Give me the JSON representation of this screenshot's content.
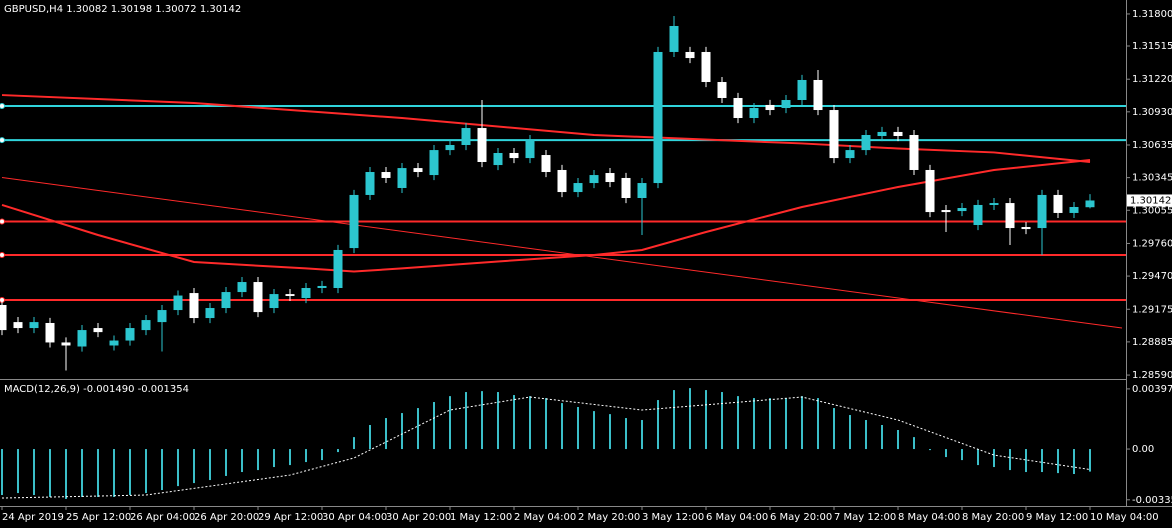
{
  "chart_data": [
    {
      "type": "candlestick",
      "title": "GBPUSD,H4  1.30082 1.30198 1.30072 1.30142",
      "categories": [
        "24 Apr 2019",
        null,
        null,
        null,
        "25 Apr 12:00",
        null,
        null,
        null,
        "26 Apr 04:00",
        null,
        null,
        null,
        "26 Apr 20:00",
        null,
        null,
        null,
        "29 Apr 12:00",
        null,
        null,
        null,
        "30 Apr 04:00",
        null,
        null,
        null,
        "30 Apr 20:00",
        null,
        null,
        null,
        "1 May 12:00",
        null,
        null,
        null,
        "2 May 04:00",
        null,
        null,
        null,
        "2 May 20:00",
        null,
        null,
        null,
        "3 May 12:00",
        null,
        null,
        null,
        "6 May 04:00",
        null,
        null,
        null,
        "6 May 20:00",
        null,
        null,
        null,
        "7 May 12:00",
        null,
        null,
        null,
        "8 May 04:00",
        null,
        null,
        null,
        "8 May 20:00",
        null,
        null,
        null,
        "9 May 12:00",
        null,
        null,
        null,
        "10 May 04:00"
      ],
      "open": [
        1.29213,
        1.29061,
        1.29008,
        1.29053,
        1.2888,
        1.28844,
        1.29008,
        1.28853,
        1.28897,
        1.2899,
        1.29061,
        1.29168,
        1.29319,
        1.29097,
        1.29186,
        1.29328,
        1.29417,
        1.29186,
        1.2931,
        1.29275,
        1.29364,
        1.29364,
        1.29719,
        1.30191,
        1.30395,
        1.30253,
        1.3043,
        1.30368,
        1.3059,
        1.30635,
        1.30786,
        1.30457,
        1.30564,
        1.30519,
        1.30546,
        1.30413,
        1.30217,
        1.30297,
        1.30386,
        1.30342,
        1.30164,
        1.30297,
        1.31462,
        1.31462,
        1.31462,
        1.31195,
        1.31053,
        1.30875,
        1.30991,
        1.30964,
        1.31035,
        1.31213,
        1.30946,
        1.30519,
        1.3059,
        1.30715,
        1.30751,
        1.30724,
        1.30413,
        1.30057,
        1.30048,
        1.29924,
        1.30102,
        1.30119,
        1.29906,
        1.29897,
        1.30191,
        1.30031,
        1.30082
      ],
      "high": [
        1.29258,
        1.29106,
        1.29106,
        1.29098,
        1.28925,
        1.29035,
        1.29053,
        1.28942,
        1.29053,
        1.29124,
        1.29213,
        1.29342,
        1.29364,
        1.29231,
        1.29373,
        1.29462,
        1.29462,
        1.29355,
        1.29355,
        1.29409,
        1.29427,
        1.29747,
        1.30236,
        1.3044,
        1.3044,
        1.30475,
        1.30475,
        1.30635,
        1.3068,
        1.30831,
        1.31035,
        1.30609,
        1.30609,
        1.30724,
        1.30591,
        1.30458,
        1.30342,
        1.30413,
        1.30431,
        1.30387,
        1.30342,
        1.31507,
        1.31782,
        1.31507,
        1.31507,
        1.3124,
        1.31098,
        1.31009,
        1.31036,
        1.3108,
        1.31258,
        1.31302,
        1.30991,
        1.30635,
        1.30769,
        1.30796,
        1.30796,
        1.30769,
        1.30458,
        1.30102,
        1.3012,
        1.30147,
        1.30164,
        1.30164,
        1.29951,
        1.30236,
        1.30236,
        1.30129,
        1.30198
      ],
      "low": [
        1.28945,
        1.28963,
        1.28963,
        1.28835,
        1.28631,
        1.28799,
        1.28927,
        1.28808,
        1.28852,
        1.28945,
        1.288,
        1.29123,
        1.29052,
        1.29052,
        1.29141,
        1.29283,
        1.29105,
        1.29141,
        1.29248,
        1.2923,
        1.29319,
        1.29319,
        1.29674,
        1.30146,
        1.30297,
        1.30208,
        1.3035,
        1.30323,
        1.30545,
        1.3059,
        1.30439,
        1.30412,
        1.30474,
        1.30474,
        1.3035,
        1.30172,
        1.30172,
        1.30252,
        1.30261,
        1.30119,
        1.29835,
        1.30252,
        1.31417,
        1.31363,
        1.3115,
        1.31008,
        1.3083,
        1.3083,
        1.30901,
        1.30919,
        1.3099,
        1.30901,
        1.30474,
        1.30474,
        1.30545,
        1.3067,
        1.3067,
        1.30368,
        1.29994,
        1.29862,
        1.30003,
        1.29879,
        1.30057,
        1.29746,
        1.29843,
        1.29657,
        1.29986,
        1.29986,
        1.30072
      ],
      "close": [
        1.2899,
        1.29008,
        1.29061,
        1.2888,
        1.28853,
        1.2899,
        1.28972,
        1.28897,
        1.29008,
        1.29079,
        1.29168,
        1.29297,
        1.29097,
        1.29186,
        1.29328,
        1.29417,
        1.2915,
        1.2931,
        1.29293,
        1.29364,
        1.29382,
        1.29702,
        1.30191,
        1.30395,
        1.30342,
        1.3043,
        1.30395,
        1.3059,
        1.30635,
        1.30786,
        1.30484,
        1.30564,
        1.30519,
        1.30679,
        1.30395,
        1.30217,
        1.30297,
        1.30368,
        1.30306,
        1.30164,
        1.30297,
        1.31462,
        1.31693,
        1.31408,
        1.31195,
        1.31053,
        1.30875,
        1.30964,
        1.30946,
        1.31035,
        1.31213,
        1.30946,
        1.30519,
        1.3059,
        1.30724,
        1.30751,
        1.30715,
        1.30413,
        1.30039,
        1.30039,
        1.30075,
        1.30102,
        1.30119,
        1.29897,
        1.29888,
        1.30191,
        1.30031,
        1.30084,
        1.30142
      ],
      "up_color": "#2cc6cf",
      "down_color": "#ffffff",
      "last_price_label": "1.30142",
      "ylim": [
        1.28564,
        1.31924
      ],
      "yticks": [
        {
          "value": 1.318,
          "label": "1.31800"
        },
        1.31515,
        {
          "value": 1.3122,
          "label": "1.31220"
        },
        {
          "value": 1.3093,
          "label": "1.30930"
        },
        1.30635,
        1.30345,
        1.30055,
        {
          "value": 1.2976,
          "label": "1.29760"
        },
        {
          "value": 1.2947,
          "label": "1.29470"
        },
        1.29175,
        1.28885,
        {
          "value": 1.2859,
          "label": "1.28590"
        }
      ],
      "hlines": [
        {
          "value": 1.30982,
          "color": "#30d5dc"
        },
        {
          "value": 1.30679,
          "color": "#30d5dc"
        },
        {
          "value": 1.29955,
          "color": "#ff2a2a"
        },
        {
          "value": 1.29657,
          "color": "#ff2a2a"
        },
        {
          "value": 1.29257,
          "color": "#ff2a2a"
        }
      ],
      "overlays": [
        {
          "color": "#ff2a2a",
          "width": 2,
          "x": [
            0,
            12,
            25,
            37,
            50,
            56,
            62,
            68
          ],
          "values": [
            1.31079,
            1.31008,
            1.30875,
            1.30724,
            1.30649,
            1.30604,
            1.30569,
            1.30484
          ]
        },
        {
          "color": "#ff2a2a",
          "width": 2,
          "x": [
            0,
            6,
            12,
            19,
            22,
            25,
            31,
            37,
            40,
            44,
            50,
            56,
            62,
            68
          ],
          "values": [
            1.30102,
            1.29835,
            1.29595,
            1.29538,
            1.29511,
            1.29538,
            1.296,
            1.29657,
            1.29702,
            1.29862,
            1.30084,
            1.30262,
            1.30413,
            1.30502
          ]
        },
        {
          "color": "#ff2a2a",
          "width": 1,
          "x": [
            0,
            70
          ],
          "values": [
            1.30346,
            1.29008
          ]
        }
      ]
    },
    {
      "type": "macd",
      "title": "MACD(12,26,9) -0.001490 -0.001354",
      "color": "#3bbfc9",
      "signal_color": "#ffffff",
      "values": [
        -0.00304,
        -0.00291,
        -0.00304,
        -0.00317,
        -0.0033,
        -0.00317,
        -0.00317,
        -0.00317,
        -0.00304,
        -0.00291,
        -0.00271,
        -0.00245,
        -0.00225,
        -0.00205,
        -0.00178,
        -0.00152,
        -0.00139,
        -0.00119,
        -0.00106,
        -0.00086,
        -0.00073,
        -0.0002,
        0.00079,
        0.00159,
        0.00205,
        0.00238,
        0.00271,
        0.00311,
        0.0035,
        0.00377,
        0.00383,
        0.00377,
        0.00357,
        0.0035,
        0.00337,
        0.00304,
        0.00278,
        0.00251,
        0.00231,
        0.00205,
        0.00192,
        0.00324,
        0.0039,
        0.00403,
        0.0039,
        0.00377,
        0.0035,
        0.00337,
        0.00337,
        0.00337,
        0.0035,
        0.00337,
        0.00271,
        0.00225,
        0.00192,
        0.00159,
        0.00126,
        0.00079,
        -7e-05,
        -0.00053,
        -0.00073,
        -0.00106,
        -0.00119,
        -0.00139,
        -0.00152,
        -0.00152,
        -0.00159,
        -0.00165,
        -0.00149
      ],
      "signal": {
        "x": [
          0,
          9,
          18,
          22,
          28,
          33,
          40,
          50,
          56,
          62,
          68
        ],
        "values": [
          -0.00324,
          -0.00304,
          -0.00172,
          -0.00059,
          0.00258,
          0.00344,
          0.00258,
          0.00344,
          0.00192,
          -0.0004,
          -0.001354
        ]
      },
      "ylim": [
        -0.0037,
        0.0045
      ],
      "yticks": [
        0.003978,
        {
          "value": 0,
          "label": "0.00"
        },
        -0.003356
      ]
    }
  ]
}
